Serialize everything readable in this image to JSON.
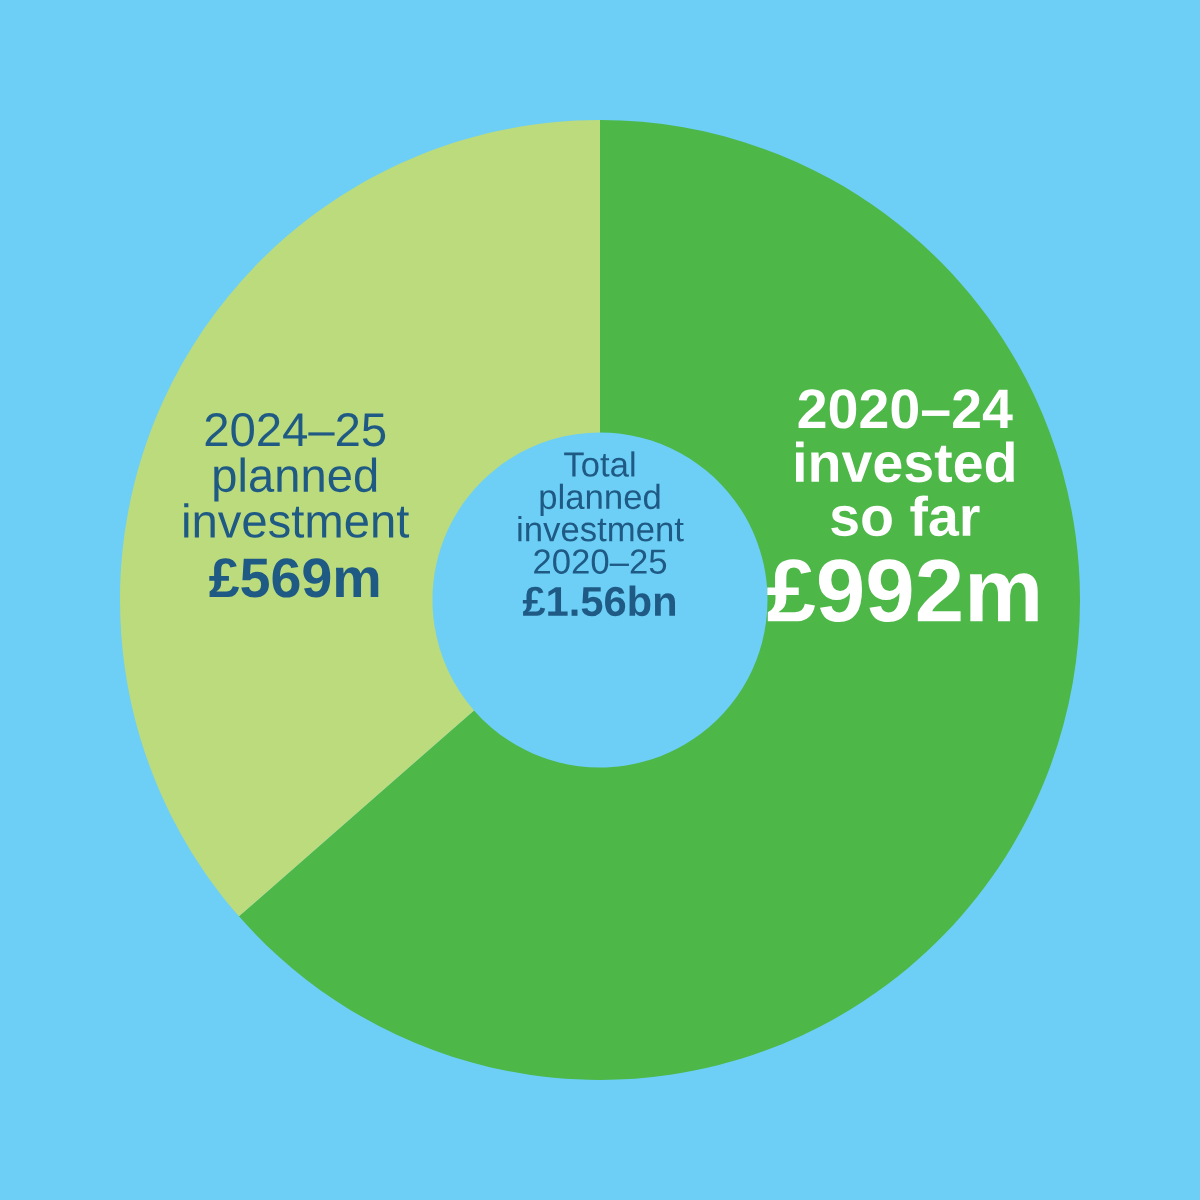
{
  "chart_data": {
    "type": "donut",
    "categories": [
      "2020–24\ninvested\nso far",
      "2024–25\nplanned\ninvestment"
    ],
    "values": [
      992,
      569
    ],
    "colors": [
      "#4db748",
      "#bcdb7c"
    ],
    "value_labels": [
      "£992m",
      "£569m"
    ],
    "annotations": [
      "Total\nplanned\ninvestment\n2020–25",
      "£1.56bn"
    ]
  }
}
